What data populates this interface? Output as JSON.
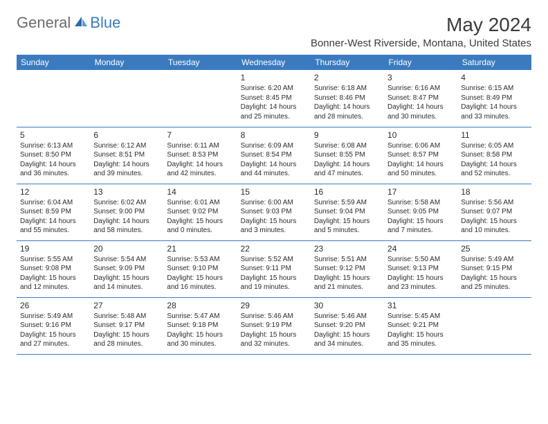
{
  "logo": {
    "general": "General",
    "blue": "Blue"
  },
  "title": "May 2024",
  "location": "Bonner-West Riverside, Montana, United States",
  "headers": [
    "Sunday",
    "Monday",
    "Tuesday",
    "Wednesday",
    "Thursday",
    "Friday",
    "Saturday"
  ],
  "weeks": [
    [
      null,
      null,
      null,
      {
        "n": "1",
        "sr": "6:20 AM",
        "ss": "8:45 PM",
        "d": "14 hours and 25 minutes."
      },
      {
        "n": "2",
        "sr": "6:18 AM",
        "ss": "8:46 PM",
        "d": "14 hours and 28 minutes."
      },
      {
        "n": "3",
        "sr": "6:16 AM",
        "ss": "8:47 PM",
        "d": "14 hours and 30 minutes."
      },
      {
        "n": "4",
        "sr": "6:15 AM",
        "ss": "8:49 PM",
        "d": "14 hours and 33 minutes."
      }
    ],
    [
      {
        "n": "5",
        "sr": "6:13 AM",
        "ss": "8:50 PM",
        "d": "14 hours and 36 minutes."
      },
      {
        "n": "6",
        "sr": "6:12 AM",
        "ss": "8:51 PM",
        "d": "14 hours and 39 minutes."
      },
      {
        "n": "7",
        "sr": "6:11 AM",
        "ss": "8:53 PM",
        "d": "14 hours and 42 minutes."
      },
      {
        "n": "8",
        "sr": "6:09 AM",
        "ss": "8:54 PM",
        "d": "14 hours and 44 minutes."
      },
      {
        "n": "9",
        "sr": "6:08 AM",
        "ss": "8:55 PM",
        "d": "14 hours and 47 minutes."
      },
      {
        "n": "10",
        "sr": "6:06 AM",
        "ss": "8:57 PM",
        "d": "14 hours and 50 minutes."
      },
      {
        "n": "11",
        "sr": "6:05 AM",
        "ss": "8:58 PM",
        "d": "14 hours and 52 minutes."
      }
    ],
    [
      {
        "n": "12",
        "sr": "6:04 AM",
        "ss": "8:59 PM",
        "d": "14 hours and 55 minutes."
      },
      {
        "n": "13",
        "sr": "6:02 AM",
        "ss": "9:00 PM",
        "d": "14 hours and 58 minutes."
      },
      {
        "n": "14",
        "sr": "6:01 AM",
        "ss": "9:02 PM",
        "d": "15 hours and 0 minutes."
      },
      {
        "n": "15",
        "sr": "6:00 AM",
        "ss": "9:03 PM",
        "d": "15 hours and 3 minutes."
      },
      {
        "n": "16",
        "sr": "5:59 AM",
        "ss": "9:04 PM",
        "d": "15 hours and 5 minutes."
      },
      {
        "n": "17",
        "sr": "5:58 AM",
        "ss": "9:05 PM",
        "d": "15 hours and 7 minutes."
      },
      {
        "n": "18",
        "sr": "5:56 AM",
        "ss": "9:07 PM",
        "d": "15 hours and 10 minutes."
      }
    ],
    [
      {
        "n": "19",
        "sr": "5:55 AM",
        "ss": "9:08 PM",
        "d": "15 hours and 12 minutes."
      },
      {
        "n": "20",
        "sr": "5:54 AM",
        "ss": "9:09 PM",
        "d": "15 hours and 14 minutes."
      },
      {
        "n": "21",
        "sr": "5:53 AM",
        "ss": "9:10 PM",
        "d": "15 hours and 16 minutes."
      },
      {
        "n": "22",
        "sr": "5:52 AM",
        "ss": "9:11 PM",
        "d": "15 hours and 19 minutes."
      },
      {
        "n": "23",
        "sr": "5:51 AM",
        "ss": "9:12 PM",
        "d": "15 hours and 21 minutes."
      },
      {
        "n": "24",
        "sr": "5:50 AM",
        "ss": "9:13 PM",
        "d": "15 hours and 23 minutes."
      },
      {
        "n": "25",
        "sr": "5:49 AM",
        "ss": "9:15 PM",
        "d": "15 hours and 25 minutes."
      }
    ],
    [
      {
        "n": "26",
        "sr": "5:49 AM",
        "ss": "9:16 PM",
        "d": "15 hours and 27 minutes."
      },
      {
        "n": "27",
        "sr": "5:48 AM",
        "ss": "9:17 PM",
        "d": "15 hours and 28 minutes."
      },
      {
        "n": "28",
        "sr": "5:47 AM",
        "ss": "9:18 PM",
        "d": "15 hours and 30 minutes."
      },
      {
        "n": "29",
        "sr": "5:46 AM",
        "ss": "9:19 PM",
        "d": "15 hours and 32 minutes."
      },
      {
        "n": "30",
        "sr": "5:46 AM",
        "ss": "9:20 PM",
        "d": "15 hours and 34 minutes."
      },
      {
        "n": "31",
        "sr": "5:45 AM",
        "ss": "9:21 PM",
        "d": "15 hours and 35 minutes."
      },
      null
    ]
  ],
  "labels": {
    "sunrise": "Sunrise:",
    "sunset": "Sunset:",
    "daylight": "Daylight:"
  },
  "colors": {
    "header_bg": "#3a7bbf",
    "header_text": "#ffffff",
    "border": "#3a7bbf",
    "text": "#2b2b2b",
    "logo_gray": "#6b6b6b",
    "logo_blue": "#3a7bbf"
  }
}
